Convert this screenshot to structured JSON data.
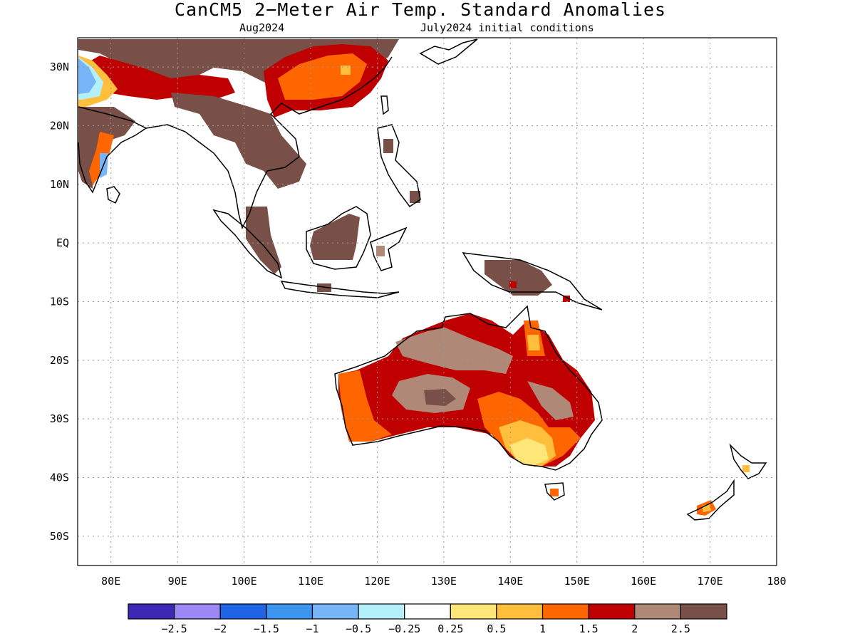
{
  "title": "CanCM5 2−Meter Air Temp. Standard Anomalies",
  "valid_month": "Aug2024",
  "initial_conditions": "July2024 initial conditions",
  "lon_ticks": [
    {
      "lon": 80,
      "label": "80E"
    },
    {
      "lon": 90,
      "label": "90E"
    },
    {
      "lon": 100,
      "label": "100E"
    },
    {
      "lon": 110,
      "label": "110E"
    },
    {
      "lon": 120,
      "label": "120E"
    },
    {
      "lon": 130,
      "label": "130E"
    },
    {
      "lon": 140,
      "label": "140E"
    },
    {
      "lon": 150,
      "label": "150E"
    },
    {
      "lon": 160,
      "label": "160E"
    },
    {
      "lon": 170,
      "label": "170E"
    },
    {
      "lon": 180,
      "label": "180"
    }
  ],
  "lat_ticks": [
    {
      "lat": 30,
      "label": "30N"
    },
    {
      "lat": 20,
      "label": "20N"
    },
    {
      "lat": 10,
      "label": "10N"
    },
    {
      "lat": 0,
      "label": "EQ"
    },
    {
      "lat": -10,
      "label": "10S"
    },
    {
      "lat": -20,
      "label": "20S"
    },
    {
      "lat": -30,
      "label": "30S"
    },
    {
      "lat": -40,
      "label": "40S"
    },
    {
      "lat": -50,
      "label": "50S"
    }
  ],
  "extent": {
    "lon_min": 75,
    "lon_max": 180,
    "lat_min": -55,
    "lat_max": 35
  },
  "colorbar": {
    "colors": [
      "#3c28b4",
      "#9c88f4",
      "#2064e6",
      "#3c96f0",
      "#78b4f8",
      "#b4f0fa",
      "#ffffff",
      "#ffe678",
      "#ffbe3c",
      "#ff6600",
      "#c00000",
      "#b08878",
      "#785048"
    ],
    "labels": [
      "−2.5",
      "−2",
      "−1.5",
      "−1",
      "−0.5",
      "−0.25",
      "0.25",
      "0.5",
      "1",
      "1.5",
      "2",
      "2.5"
    ]
  }
}
